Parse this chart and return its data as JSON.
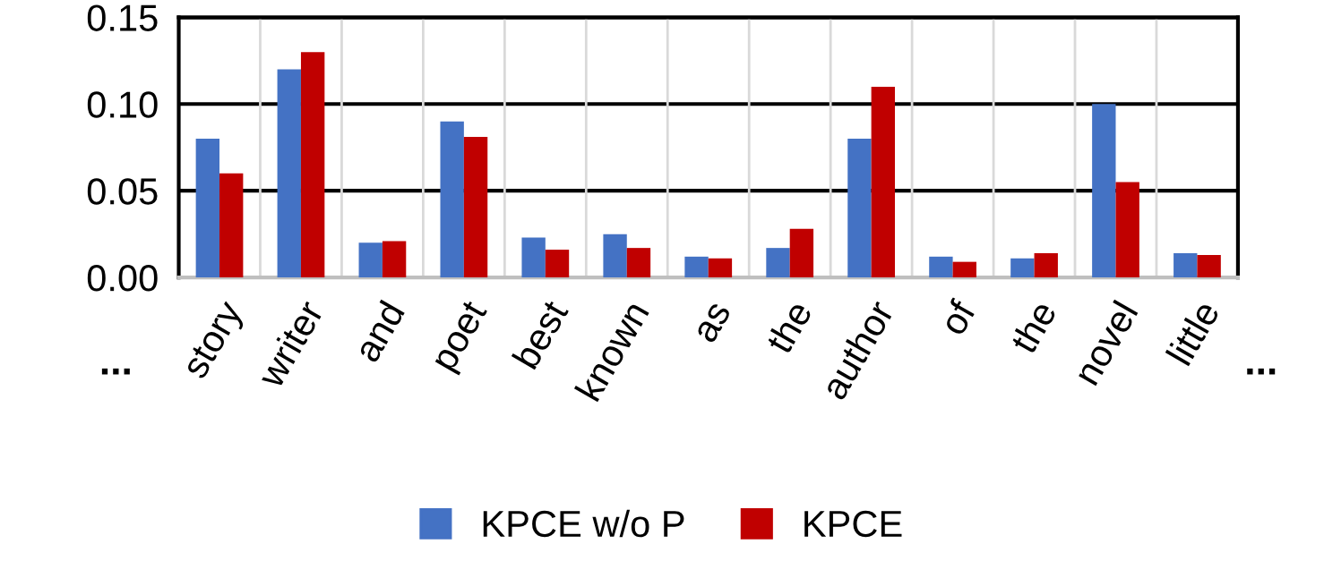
{
  "chart_data": {
    "type": "bar",
    "categories": [
      "story",
      "writer",
      "and",
      "poet",
      "best",
      "known",
      "as",
      "the",
      "author",
      "of",
      "the",
      "novel",
      "little"
    ],
    "series": [
      {
        "name": "KPCE w/o P",
        "color": "#4472c4",
        "values": [
          0.08,
          0.12,
          0.02,
          0.09,
          0.023,
          0.025,
          0.012,
          0.017,
          0.08,
          0.012,
          0.011,
          0.1,
          0.014
        ]
      },
      {
        "name": "KPCE",
        "color": "#c00000",
        "values": [
          0.06,
          0.13,
          0.021,
          0.081,
          0.016,
          0.017,
          0.011,
          0.028,
          0.11,
          0.009,
          0.014,
          0.055,
          0.013
        ]
      }
    ],
    "ylim": [
      0,
      0.15
    ],
    "yticks": [
      {
        "value": 0,
        "label": "0.00"
      },
      {
        "value": 0.05,
        "label": "0.05"
      },
      {
        "value": 0.1,
        "label": "0.10"
      },
      {
        "value": 0.15,
        "label": "0.15"
      }
    ],
    "grid": true,
    "legend": "bottom",
    "annotations": [
      "...",
      "..."
    ]
  }
}
